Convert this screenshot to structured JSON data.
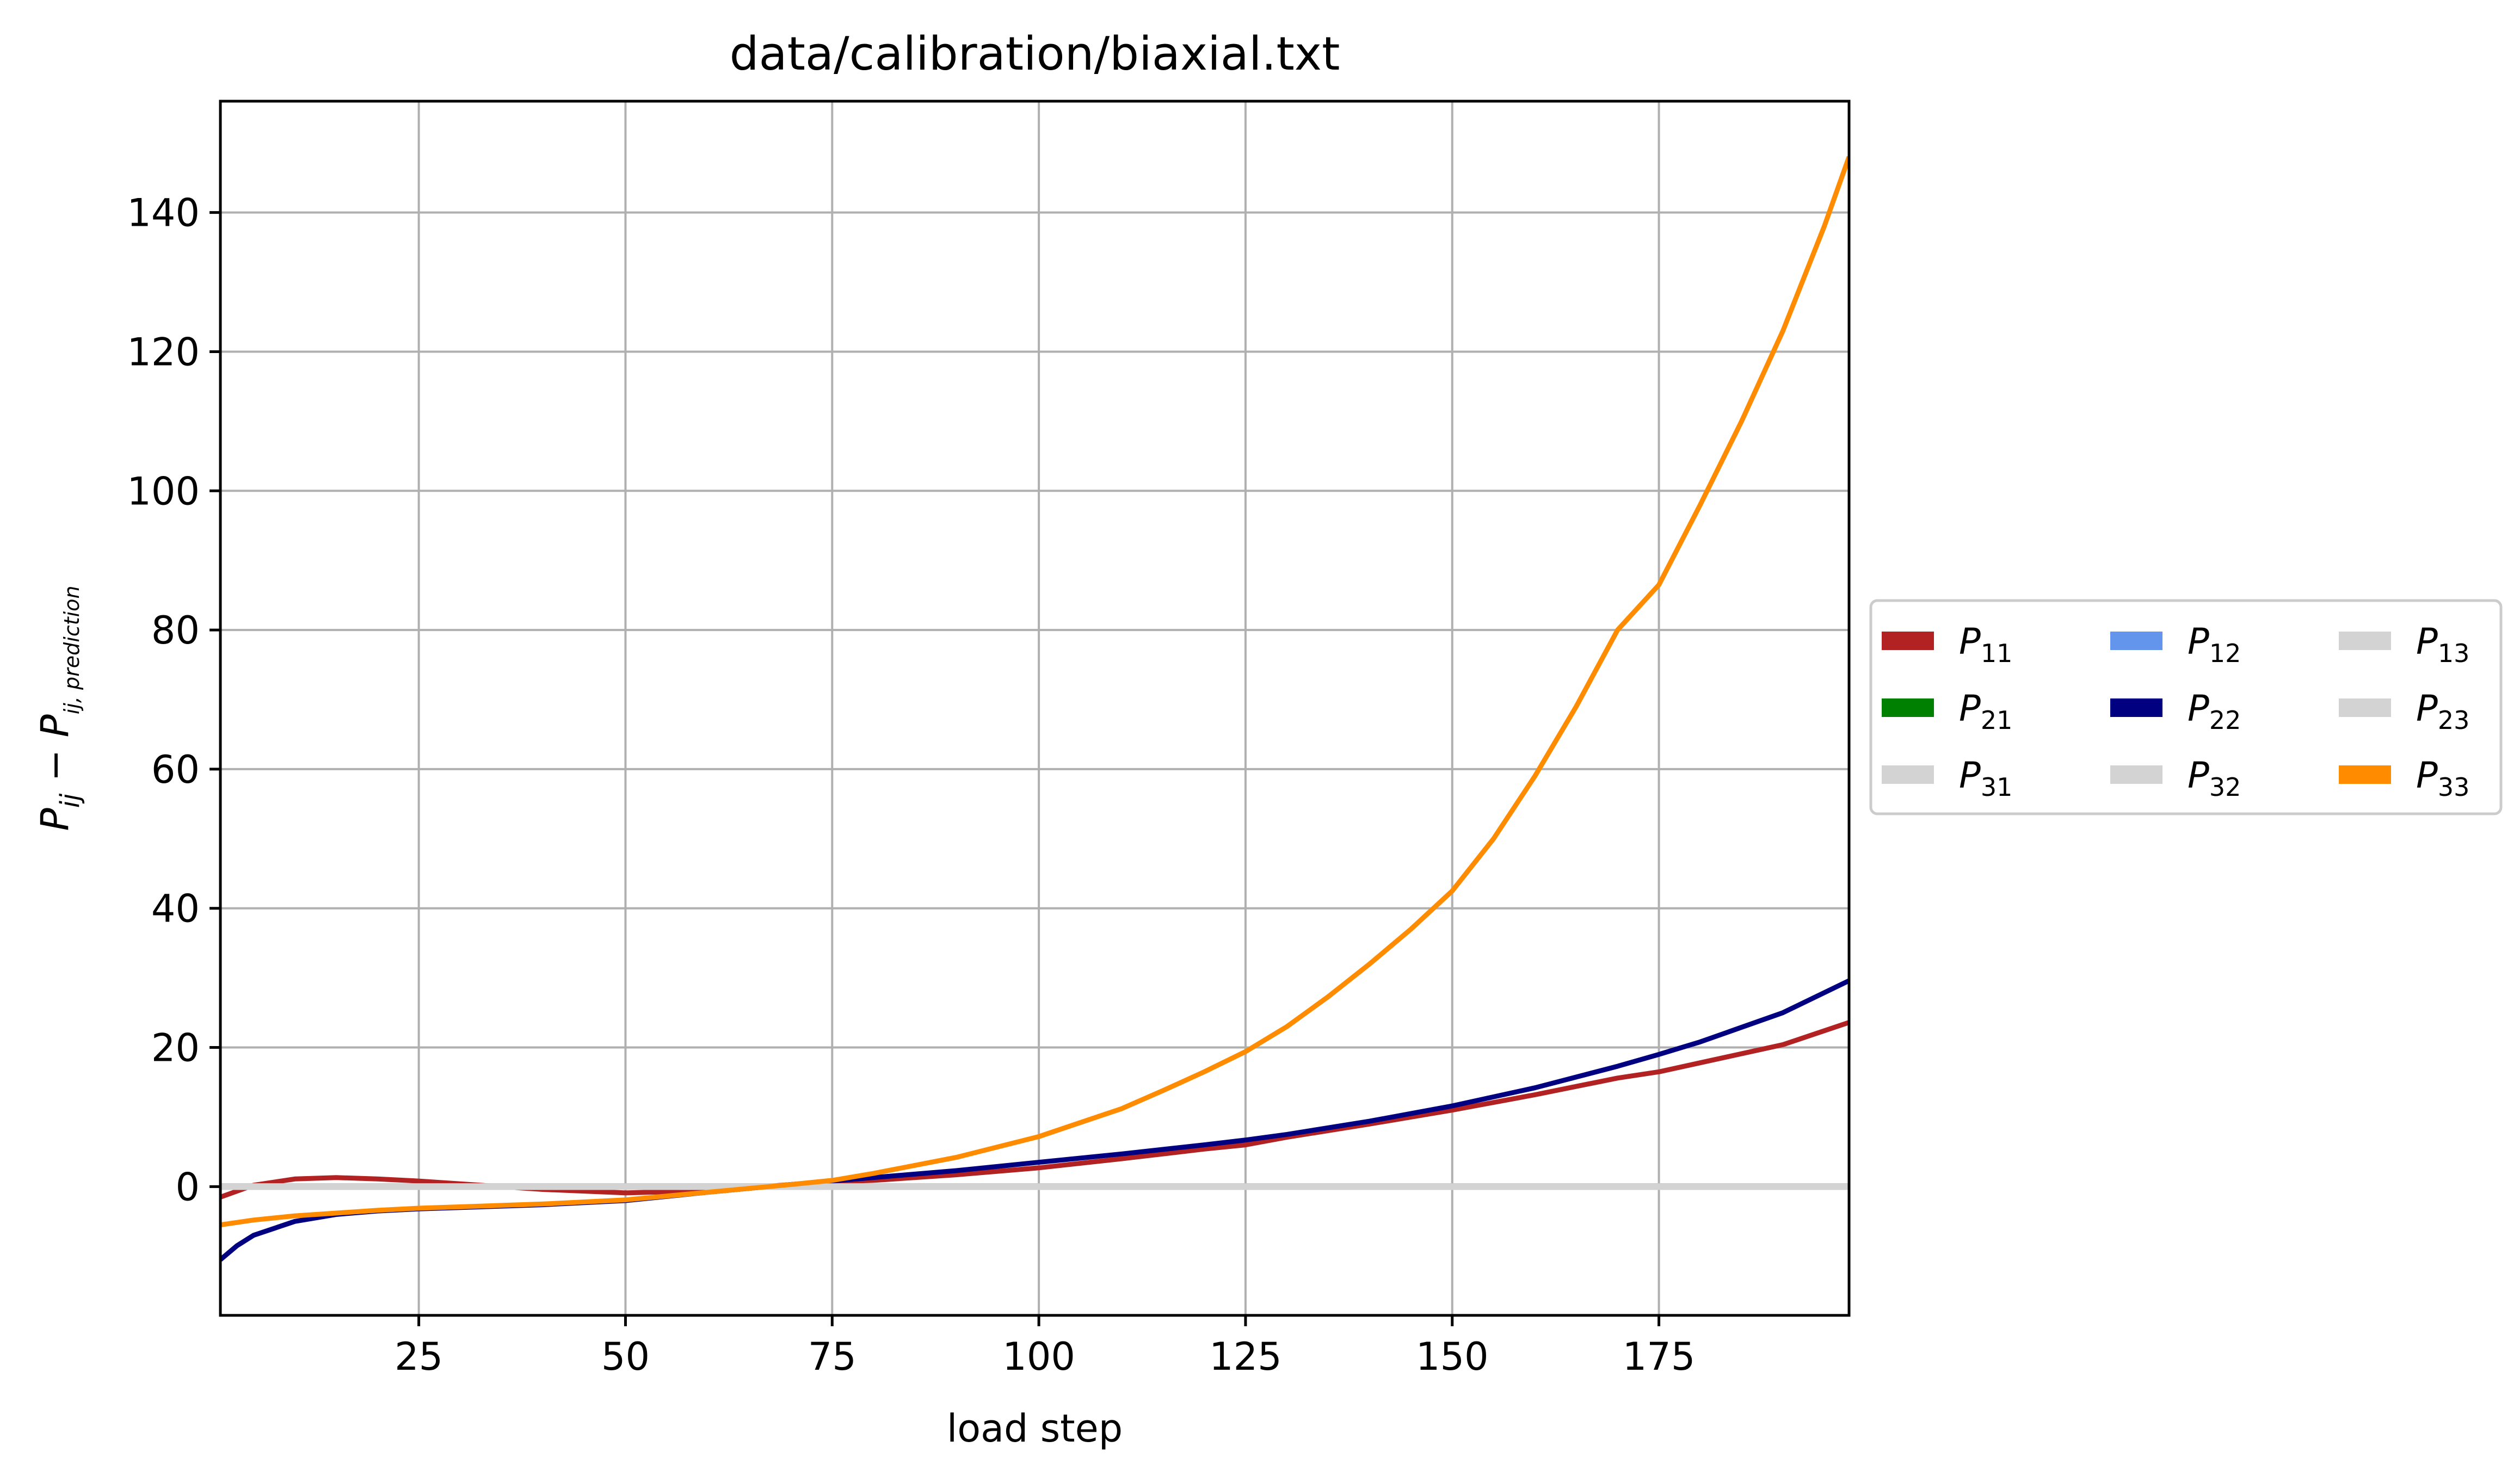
{
  "chart_data": {
    "type": "line",
    "title": "data/calibration/biaxial.txt",
    "xlabel": "load step",
    "ylabel": {
      "base": "P",
      "sub1": "ij",
      "op": " − ",
      "base2": "P",
      "sub2": "ij, prediction"
    },
    "xlim": [
      1,
      198
    ],
    "ylim": [
      -18.5,
      156
    ],
    "xticks": [
      25,
      50,
      75,
      100,
      125,
      150,
      175
    ],
    "yticks": [
      0,
      20,
      40,
      60,
      80,
      100,
      120,
      140
    ],
    "grid": true,
    "legend_position": "center-right-outside",
    "legend_columns": 3,
    "series": [
      {
        "name": "P11",
        "label_base": "P",
        "label_sub": "11",
        "color": "#b22222",
        "x": [
          1,
          5,
          10,
          15,
          20,
          25,
          30,
          40,
          50,
          60,
          70,
          75,
          80,
          90,
          100,
          110,
          120,
          125,
          130,
          140,
          150,
          160,
          170,
          175,
          180,
          190,
          198
        ],
        "y": [
          -1.5,
          0.2,
          1.1,
          1.3,
          1.1,
          0.8,
          0.4,
          -0.4,
          -0.9,
          -0.6,
          0.3,
          0.7,
          0.9,
          1.7,
          2.7,
          4.0,
          5.4,
          6.0,
          7.1,
          9.0,
          11.0,
          13.2,
          15.6,
          16.5,
          17.8,
          20.4,
          23.6
        ]
      },
      {
        "name": "P12",
        "label_base": "P",
        "label_sub": "12",
        "color": "#6495ed",
        "x": [
          1,
          198
        ],
        "y": [
          0,
          0
        ]
      },
      {
        "name": "P13",
        "label_base": "P",
        "label_sub": "13",
        "color": "#d3d3d3",
        "x": [
          1,
          198
        ],
        "y": [
          0,
          0
        ]
      },
      {
        "name": "P21",
        "label_base": "P",
        "label_sub": "21",
        "color": "#008000",
        "x": [
          1,
          198
        ],
        "y": [
          0,
          0
        ]
      },
      {
        "name": "P22",
        "label_base": "P",
        "label_sub": "22",
        "color": "#000080",
        "x": [
          1,
          3,
          5,
          10,
          15,
          20,
          25,
          30,
          40,
          50,
          60,
          70,
          75,
          80,
          90,
          100,
          110,
          120,
          125,
          130,
          140,
          150,
          160,
          170,
          175,
          180,
          190,
          198
        ],
        "y": [
          -10.5,
          -8.5,
          -7.0,
          -5.0,
          -4.0,
          -3.5,
          -3.2,
          -3.0,
          -2.6,
          -2.0,
          -0.8,
          0.3,
          0.8,
          1.3,
          2.3,
          3.5,
          4.7,
          6.0,
          6.7,
          7.5,
          9.4,
          11.6,
          14.2,
          17.3,
          19.0,
          20.8,
          25.0,
          29.6
        ]
      },
      {
        "name": "P23",
        "label_base": "P",
        "label_sub": "23",
        "color": "#d3d3d3",
        "x": [
          1,
          198
        ],
        "y": [
          0,
          0
        ]
      },
      {
        "name": "P31",
        "label_base": "P",
        "label_sub": "31",
        "color": "#d3d3d3",
        "x": [
          1,
          198
        ],
        "y": [
          0,
          0
        ]
      },
      {
        "name": "P32",
        "label_base": "P",
        "label_sub": "32",
        "color": "#d3d3d3",
        "x": [
          1,
          198
        ],
        "y": [
          0,
          0
        ]
      },
      {
        "name": "P33",
        "label_base": "P",
        "label_sub": "33",
        "color": "#ff8c00",
        "x": [
          1,
          5,
          10,
          15,
          20,
          25,
          30,
          40,
          50,
          60,
          70,
          75,
          80,
          90,
          100,
          110,
          115,
          120,
          125,
          130,
          135,
          140,
          145,
          150,
          155,
          160,
          165,
          170,
          175,
          180,
          185,
          190,
          195,
          198
        ],
        "y": [
          -5.5,
          -4.8,
          -4.2,
          -3.8,
          -3.4,
          -3.1,
          -2.9,
          -2.5,
          -1.9,
          -0.8,
          0.3,
          0.9,
          1.9,
          4.2,
          7.2,
          11.2,
          13.8,
          16.5,
          19.4,
          23.0,
          27.3,
          32.0,
          37.0,
          42.5,
          50.0,
          59.0,
          69.0,
          80.0,
          86.5,
          98.0,
          110.0,
          123.0,
          138.0,
          148.0
        ]
      }
    ],
    "plot_order": [
      "P11",
      "P12",
      "P13",
      "P21",
      "P22",
      "P23",
      "P31",
      "P32",
      "P33"
    ],
    "legend_order": [
      "P11",
      "P21",
      "P31",
      "P12",
      "P22",
      "P32",
      "P13",
      "P23",
      "P33"
    ]
  }
}
